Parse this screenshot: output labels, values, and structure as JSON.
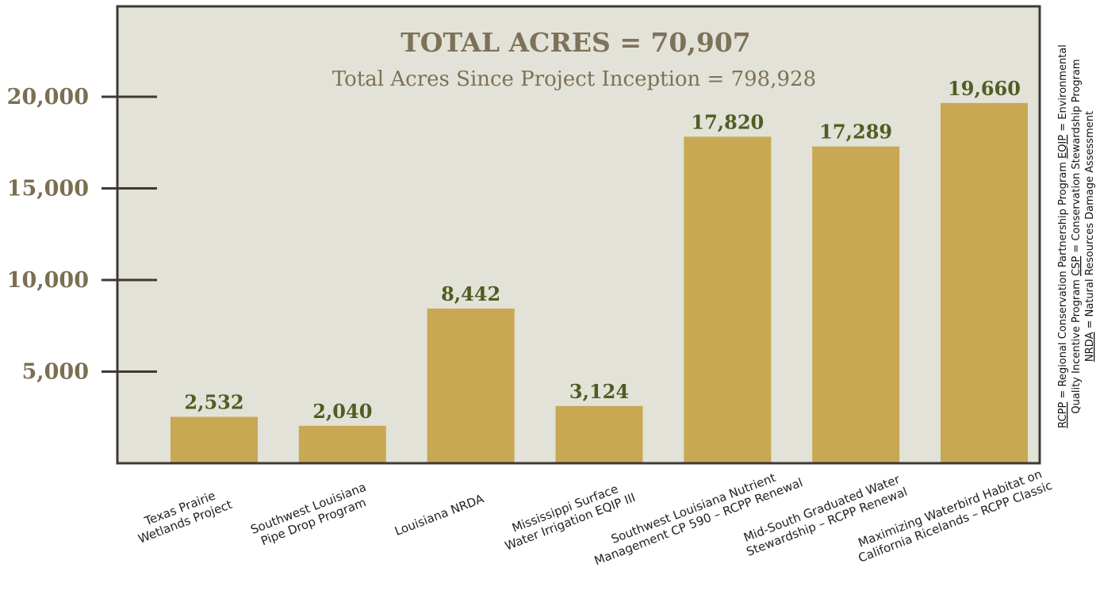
{
  "chart_data": {
    "type": "bar",
    "title": "TOTAL ACRES = 70,907",
    "subtitle": "Total Acres Since Project Inception = 798,928",
    "categories": [
      [
        "Texas Prairie",
        "Wetlands Project"
      ],
      [
        "Southwest Louisiana",
        "Pipe Drop Program"
      ],
      [
        "Louisiana NRDA"
      ],
      [
        "Mississippi Surface",
        "Water Irrigation EQIP III"
      ],
      [
        "Southwest Louisiana Nutrient",
        "Management CP 590 – RCPP Renewal"
      ],
      [
        "Mid-South Graduated Water",
        "Stewardship – RCPP Renewal"
      ],
      [
        "Maximizing Waterbird Habitat on",
        "California Ricelands – RCPP Classic"
      ]
    ],
    "values": [
      2532,
      2040,
      8442,
      3124,
      17820,
      17289,
      19660
    ],
    "value_labels": [
      "2,532",
      "2,040",
      "8,442",
      "3,124",
      "17,820",
      "17,289",
      "19,660"
    ],
    "yticks": [
      5000,
      10000,
      15000,
      20000
    ],
    "ytick_labels": [
      "5,000",
      "10,000",
      "15,000",
      "20,000"
    ],
    "ylim": [
      0,
      25000
    ],
    "grid": false,
    "legend_lines": [
      [
        {
          "abbr": "RCPP",
          "text": " = Regional Conservation Partnership Program   "
        },
        {
          "abbr": "EQIP",
          "text": " = Environmental"
        }
      ],
      [
        {
          "abbr": "",
          "text": "Quality Incentive Program   "
        },
        {
          "abbr": "CSP",
          "text": " = Conservation Stewardship Program"
        }
      ],
      [
        {
          "abbr": "NRDA",
          "text": " = Natural Resources Damage Assessment"
        }
      ]
    ],
    "legend_placement": "right, rotated vertical",
    "colors": {
      "bar": "#c9a854",
      "plot_bg": "#e2e2d8",
      "frame": "#3d3a33",
      "title": "#7d7257",
      "data_label": "#4f5d23",
      "tick_label": "#7a6f52"
    }
  }
}
